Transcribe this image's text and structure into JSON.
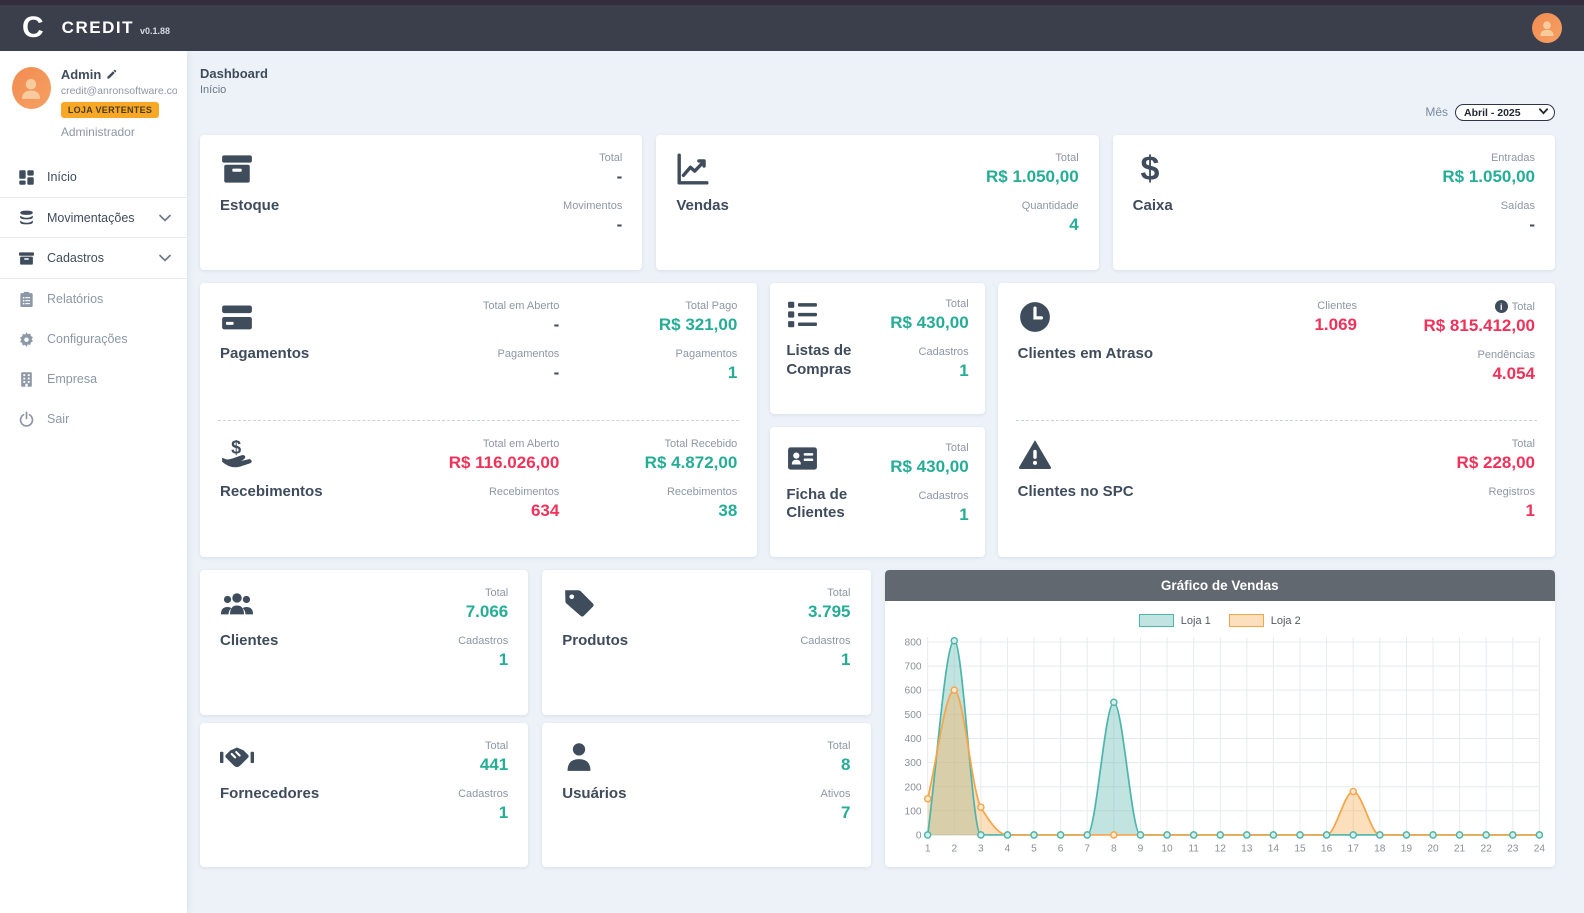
{
  "header": {
    "logo_letter": "C",
    "brand": "CREDIT",
    "version": "v0.1.88"
  },
  "sidebar": {
    "user": {
      "name": "Admin",
      "email": "credit@anronsoftware.co...",
      "badge": "LOJA VERTENTES",
      "role": "Administrador"
    },
    "items": [
      {
        "label": "Início"
      },
      {
        "label": "Movimentações"
      },
      {
        "label": "Cadastros"
      },
      {
        "label": "Relatórios"
      },
      {
        "label": "Configurações"
      },
      {
        "label": "Empresa"
      },
      {
        "label": "Sair"
      }
    ]
  },
  "page": {
    "title": "Dashboard",
    "breadcrumb": "Início",
    "month_label": "Mês",
    "month_value": "Abril - 2025"
  },
  "cards": {
    "estoque": {
      "title": "Estoque",
      "stats": [
        {
          "label": "Total",
          "value": "-"
        },
        {
          "label": "Movimentos",
          "value": "-"
        }
      ]
    },
    "vendas": {
      "title": "Vendas",
      "stats": [
        {
          "label": "Total",
          "value": "R$ 1.050,00"
        },
        {
          "label": "Quantidade",
          "value": "4"
        }
      ]
    },
    "caixa": {
      "title": "Caixa",
      "stats": [
        {
          "label": "Entradas",
          "value": "R$ 1.050,00"
        },
        {
          "label": "Saídas",
          "value": "-"
        }
      ]
    },
    "pagamentos": {
      "title": "Pagamentos",
      "open": [
        {
          "label": "Total em Aberto",
          "value": "-"
        },
        {
          "label": "Pagamentos",
          "value": "-"
        }
      ],
      "paid": [
        {
          "label": "Total Pago",
          "value": "R$ 321,00"
        },
        {
          "label": "Pagamentos",
          "value": "1"
        }
      ]
    },
    "recebimentos": {
      "title": "Recebimentos",
      "open": [
        {
          "label": "Total em Aberto",
          "value": "R$ 116.026,00"
        },
        {
          "label": "Recebimentos",
          "value": "634"
        }
      ],
      "received": [
        {
          "label": "Total Recebido",
          "value": "R$ 4.872,00"
        },
        {
          "label": "Recebimentos",
          "value": "38"
        }
      ]
    },
    "listas": {
      "title": "Listas de Compras",
      "stats": [
        {
          "label": "Total",
          "value": "R$ 430,00"
        },
        {
          "label": "Cadastros",
          "value": "1"
        }
      ]
    },
    "ficha": {
      "title": "Ficha de Clientes",
      "stats": [
        {
          "label": "Total",
          "value": "R$ 430,00"
        },
        {
          "label": "Cadastros",
          "value": "1"
        }
      ]
    },
    "atraso": {
      "title": "Clientes em Atraso",
      "clientes": {
        "label": "Clientes",
        "value": "1.069"
      },
      "totals": [
        {
          "label": "Total",
          "value": "R$ 815.412,00"
        },
        {
          "label": "Pendências",
          "value": "4.054"
        }
      ]
    },
    "spc": {
      "title": "Clientes no SPC",
      "stats": [
        {
          "label": "Total",
          "value": "R$ 228,00"
        },
        {
          "label": "Registros",
          "value": "1"
        }
      ]
    },
    "clientes": {
      "title": "Clientes",
      "stats": [
        {
          "label": "Total",
          "value": "7.066"
        },
        {
          "label": "Cadastros",
          "value": "1"
        }
      ]
    },
    "produtos": {
      "title": "Produtos",
      "stats": [
        {
          "label": "Total",
          "value": "3.795"
        },
        {
          "label": "Cadastros",
          "value": "1"
        }
      ]
    },
    "fornecedores": {
      "title": "Fornecedores",
      "stats": [
        {
          "label": "Total",
          "value": "441"
        },
        {
          "label": "Cadastros",
          "value": "1"
        }
      ]
    },
    "usuarios": {
      "title": "Usuários",
      "stats": [
        {
          "label": "Total",
          "value": "8"
        },
        {
          "label": "Ativos",
          "value": "7"
        }
      ]
    }
  },
  "chart_data": {
    "type": "area",
    "title": "Gráfico de Vendas",
    "x": [
      1,
      2,
      3,
      4,
      5,
      6,
      7,
      8,
      9,
      10,
      11,
      12,
      13,
      14,
      15,
      16,
      17,
      18,
      19,
      20,
      21,
      22,
      23,
      24
    ],
    "series": [
      {
        "name": "Loja 1",
        "color": "#4db6ac",
        "fill": "rgba(109,191,182,0.42)",
        "marker_fill": "#d7eeec",
        "values": [
          0,
          805,
          0,
          0,
          0,
          0,
          0,
          550,
          0,
          0,
          0,
          0,
          0,
          0,
          0,
          0,
          0,
          0,
          0,
          0,
          0,
          0,
          0,
          0
        ]
      },
      {
        "name": "Loja 2",
        "color": "#f5a54a",
        "fill": "rgba(247,178,95,0.42)",
        "marker_fill": "#fdead2",
        "values": [
          150,
          600,
          115,
          0,
          0,
          0,
          0,
          0,
          0,
          0,
          0,
          0,
          0,
          0,
          0,
          0,
          180,
          0,
          0,
          0,
          0,
          0,
          0,
          0
        ]
      }
    ],
    "ylim": [
      0,
      820
    ],
    "yticks": [
      0,
      100,
      200,
      300,
      400,
      500,
      600,
      700,
      800
    ],
    "grid": true,
    "legend_position": "top"
  },
  "colors": {
    "accent_green": "#25ad96",
    "accent_red": "#f0325a",
    "header_bg": "#3a3f4b",
    "top_strip": "#332d3d",
    "page_bg": "#edf2f8",
    "chart_header_bg": "#626870",
    "badge_orange": "#f9a826",
    "icon_navy": "#3f4c5c"
  }
}
